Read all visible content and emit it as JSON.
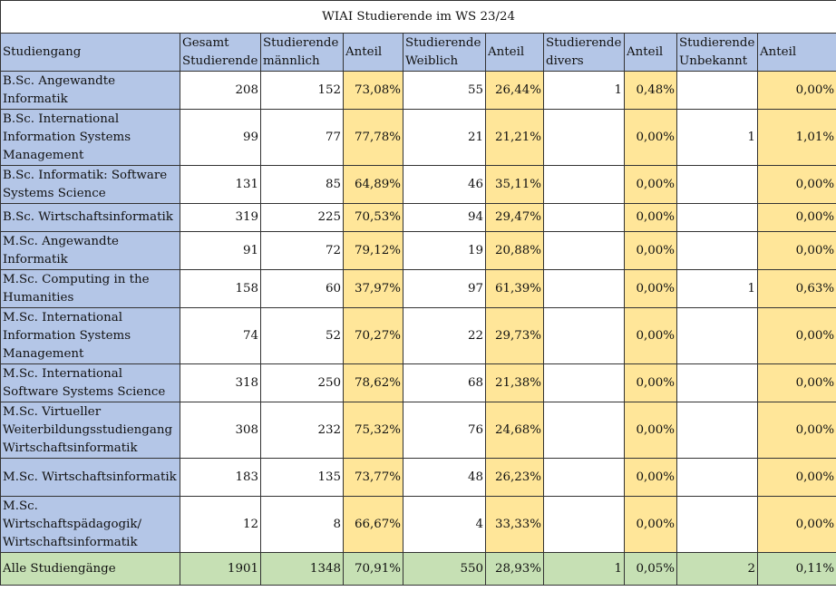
{
  "title": "WIAI Studierende im WS 23/24",
  "headers": [
    "Studiengang",
    "Gesamt Studierende",
    "Studierende männlich",
    "Anteil",
    "Studierende Weiblich",
    "Anteil",
    "Studierende divers",
    "Anteil",
    "Studierende Unbekannt",
    "Anteil"
  ],
  "rows": [
    {
      "name": "B.Sc. Angewandte Informatik",
      "total": "208",
      "male": "152",
      "male_pct": "73,08%",
      "female": "55",
      "female_pct": "26,44%",
      "diverse": "1",
      "diverse_pct": "0,48%",
      "unknown": "",
      "unknown_pct": "0,00%"
    },
    {
      "name": "B.Sc. International Information Systems Management",
      "total": "99",
      "male": "77",
      "male_pct": "77,78%",
      "female": "21",
      "female_pct": "21,21%",
      "diverse": "",
      "diverse_pct": "0,00%",
      "unknown": "1",
      "unknown_pct": "1,01%"
    },
    {
      "name": "B.Sc. Informatik: Software Systems Science",
      "total": "131",
      "male": "85",
      "male_pct": "64,89%",
      "female": "46",
      "female_pct": "35,11%",
      "diverse": "",
      "diverse_pct": "0,00%",
      "unknown": "",
      "unknown_pct": "0,00%"
    },
    {
      "name": "B.Sc. Wirtschaftsinformatik",
      "total": "319",
      "male": "225",
      "male_pct": "70,53%",
      "female": "94",
      "female_pct": "29,47%",
      "diverse": "",
      "diverse_pct": "0,00%",
      "unknown": "",
      "unknown_pct": "0,00%"
    },
    {
      "name": "M.Sc. Angewandte Informatik",
      "total": "91",
      "male": "72",
      "male_pct": "79,12%",
      "female": "19",
      "female_pct": "20,88%",
      "diverse": "",
      "diverse_pct": "0,00%",
      "unknown": "",
      "unknown_pct": "0,00%"
    },
    {
      "name": "M.Sc. Computing in the Humanities",
      "total": "158",
      "male": "60",
      "male_pct": "37,97%",
      "female": "97",
      "female_pct": "61,39%",
      "diverse": "",
      "diverse_pct": "0,00%",
      "unknown": "1",
      "unknown_pct": "0,63%"
    },
    {
      "name": "M.Sc. International Information Systems Management",
      "total": "74",
      "male": "52",
      "male_pct": "70,27%",
      "female": "22",
      "female_pct": "29,73%",
      "diverse": "",
      "diverse_pct": "0,00%",
      "unknown": "",
      "unknown_pct": "0,00%"
    },
    {
      "name": "M.Sc. International Software Systems Science",
      "total": "318",
      "male": "250",
      "male_pct": "78,62%",
      "female": "68",
      "female_pct": "21,38%",
      "diverse": "",
      "diverse_pct": "0,00%",
      "unknown": "",
      "unknown_pct": "0,00%"
    },
    {
      "name": "M.Sc. Virtueller Weiterbildungsstudiengang Wirtschaftsinformatik",
      "total": "308",
      "male": "232",
      "male_pct": "75,32%",
      "female": "76",
      "female_pct": "24,68%",
      "diverse": "",
      "diverse_pct": "0,00%",
      "unknown": "",
      "unknown_pct": "0,00%"
    },
    {
      "name": "M.Sc. Wirtschaftsinformatik",
      "total": "183",
      "male": "135",
      "male_pct": "73,77%",
      "female": "48",
      "female_pct": "26,23%",
      "diverse": "",
      "diverse_pct": "0,00%",
      "unknown": "",
      "unknown_pct": "0,00%"
    },
    {
      "name": "M.Sc. Wirtschaftspädagogik/ Wirtschaftsinformatik",
      "total": "12",
      "male": "8",
      "male_pct": "66,67%",
      "female": "4",
      "female_pct": "33,33%",
      "diverse": "",
      "diverse_pct": "0,00%",
      "unknown": "",
      "unknown_pct": "0,00%"
    }
  ],
  "total_row": {
    "name": "Alle Studiengänge",
    "total": "1901",
    "male": "1348",
    "male_pct": "70,91%",
    "female": "550",
    "female_pct": "28,93%",
    "diverse": "1",
    "diverse_pct": "0,05%",
    "unknown": "2",
    "unknown_pct": "0,11%"
  },
  "colors": {
    "header_fill": "#b4c6e7",
    "share_fill": "#ffe699",
    "total_fill": "#c6e0b4"
  }
}
